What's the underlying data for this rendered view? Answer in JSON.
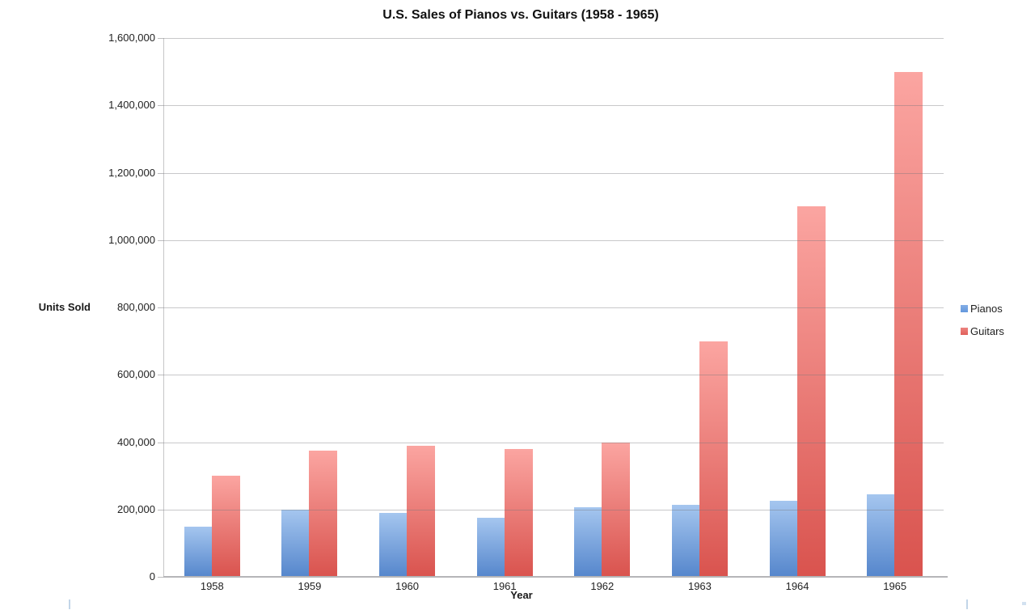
{
  "chart_data": {
    "type": "bar",
    "title": "U.S. Sales of Pianos vs. Guitars (1958 - 1965)",
    "xlabel": "Year",
    "ylabel": "Units Sold",
    "categories": [
      "1958",
      "1959",
      "1960",
      "1961",
      "1962",
      "1963",
      "1964",
      "1965"
    ],
    "series": [
      {
        "name": "Pianos",
        "values": [
          150000,
          200000,
          190000,
          175000,
          207000,
          215000,
          225000,
          245000
        ],
        "color_top": "#a5c6ef",
        "color_bottom": "#5586cc",
        "legend_color_top": "#84ade6",
        "legend_color_bottom": "#6398dd"
      },
      {
        "name": "Guitars",
        "values": [
          300000,
          375000,
          390000,
          380000,
          400000,
          700000,
          1100000,
          1500000
        ],
        "color_top": "#fba5a1",
        "color_bottom": "#d9534e",
        "legend_color_top": "#ed8480",
        "legend_color_bottom": "#e0605a"
      }
    ],
    "ylim": [
      0,
      1600000
    ],
    "ytick_step": 200000,
    "ytick_labels": [
      "0",
      "200,000",
      "400,000",
      "600,000",
      "800,000",
      "1,000,000",
      "1,200,000",
      "1,400,000",
      "1,600,000"
    ],
    "grid": "horizontal",
    "legend_position": "right"
  }
}
